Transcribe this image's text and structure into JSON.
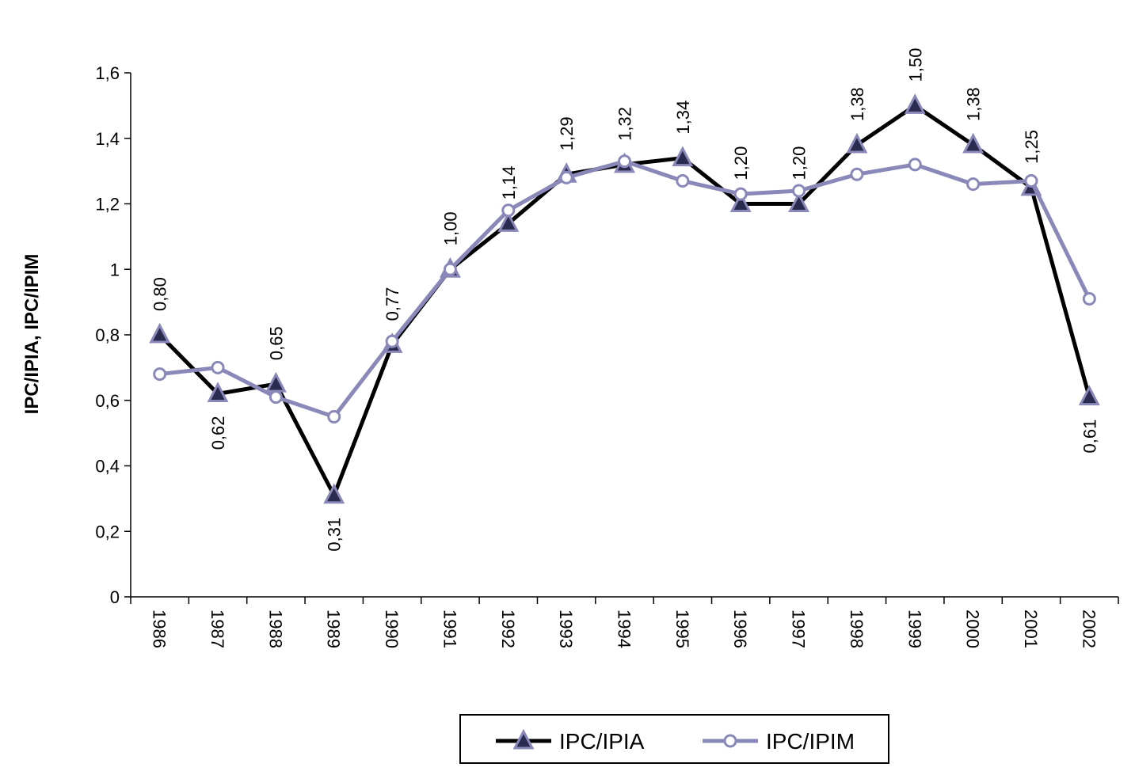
{
  "chart_data": {
    "type": "line",
    "ylabel": "IPC/IPIA, IPC/IPIM",
    "xlabel": "",
    "ylim": [
      0,
      1.6
    ],
    "y_ticks": [
      "0",
      "0,2",
      "0,4",
      "0,6",
      "0,8",
      "1",
      "1,2",
      "1,4",
      "1,6"
    ],
    "y_tick_values": [
      0,
      0.2,
      0.4,
      0.6,
      0.8,
      1.0,
      1.2,
      1.4,
      1.6
    ],
    "categories": [
      "1986",
      "1987",
      "1988",
      "1989",
      "1990",
      "1991",
      "1992",
      "1993",
      "1994",
      "1995",
      "1996",
      "1997",
      "1998",
      "1999",
      "2000",
      "2001",
      "2002"
    ],
    "grid": false,
    "legend_position": "bottom",
    "series": [
      {
        "name": "IPC/IPIA",
        "marker": "triangle",
        "color": "#000000",
        "marker_fill": "#2b2b4f",
        "marker_stroke": "#8a88b8",
        "values": [
          0.8,
          0.62,
          0.65,
          0.31,
          0.77,
          1.0,
          1.14,
          1.29,
          1.32,
          1.34,
          1.2,
          1.2,
          1.38,
          1.5,
          1.38,
          1.25,
          0.61
        ],
        "labels": [
          "0,80",
          "0,62",
          "0,65",
          "0,31",
          "0,77",
          "1,00",
          "1,14",
          "1,29",
          "1,32",
          "1,34",
          "1,20",
          "1,20",
          "1,38",
          "1,50",
          "1,38",
          "1,25",
          "0,61"
        ]
      },
      {
        "name": "IPC/IPIM",
        "marker": "circle",
        "color": "#8a88b8",
        "marker_fill": "#ffffff",
        "marker_stroke": "#8a88b8",
        "values": [
          0.68,
          0.7,
          0.61,
          0.55,
          0.78,
          1.0,
          1.18,
          1.28,
          1.33,
          1.27,
          1.23,
          1.24,
          1.29,
          1.32,
          1.26,
          1.27,
          0.91
        ]
      }
    ]
  }
}
